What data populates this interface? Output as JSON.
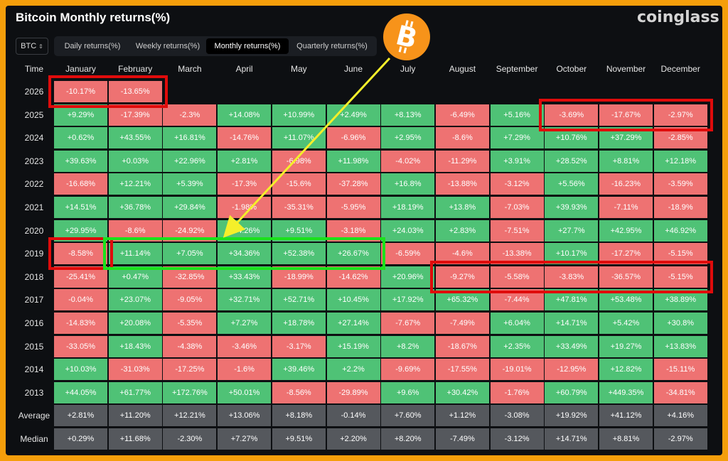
{
  "title": "Bitcoin Monthly returns(%)",
  "brand": "coinglass",
  "coin_select": {
    "value": "BTC"
  },
  "tabs": [
    {
      "label": "Daily returns(%)",
      "active": false
    },
    {
      "label": "Weekly returns(%)",
      "active": false
    },
    {
      "label": "Monthly returns(%)",
      "active": true
    },
    {
      "label": "Quarterly returns(%)",
      "active": false
    }
  ],
  "table": {
    "time_header": "Time",
    "months": [
      "January",
      "February",
      "March",
      "April",
      "May",
      "June",
      "July",
      "August",
      "September",
      "October",
      "November",
      "December"
    ],
    "rows": [
      {
        "year": "2026",
        "values": [
          "-10.17%",
          "-13.65%",
          "",
          "",
          "",
          "",
          "",
          "",
          "",
          "",
          "",
          ""
        ]
      },
      {
        "year": "2025",
        "values": [
          "+9.29%",
          "-17.39%",
          "-2.3%",
          "+14.08%",
          "+10.99%",
          "+2.49%",
          "+8.13%",
          "-6.49%",
          "+5.16%",
          "-3.69%",
          "-17.67%",
          "-2.97%"
        ]
      },
      {
        "year": "2024",
        "values": [
          "+0.62%",
          "+43.55%",
          "+16.81%",
          "-14.76%",
          "+11.07%",
          "-6.96%",
          "+2.95%",
          "-8.6%",
          "+7.29%",
          "+10.76%",
          "+37.29%",
          "-2.85%"
        ]
      },
      {
        "year": "2023",
        "values": [
          "+39.63%",
          "+0.03%",
          "+22.96%",
          "+2.81%",
          "-6.98%",
          "+11.98%",
          "-4.02%",
          "-11.29%",
          "+3.91%",
          "+28.52%",
          "+8.81%",
          "+12.18%"
        ]
      },
      {
        "year": "2022",
        "values": [
          "-16.68%",
          "+12.21%",
          "+5.39%",
          "-17.3%",
          "-15.6%",
          "-37.28%",
          "+16.8%",
          "-13.88%",
          "-3.12%",
          "+5.56%",
          "-16.23%",
          "-3.59%"
        ]
      },
      {
        "year": "2021",
        "values": [
          "+14.51%",
          "+36.78%",
          "+29.84%",
          "-1.98%",
          "-35.31%",
          "-5.95%",
          "+18.19%",
          "+13.8%",
          "-7.03%",
          "+39.93%",
          "-7.11%",
          "-18.9%"
        ]
      },
      {
        "year": "2020",
        "values": [
          "+29.95%",
          "-8.6%",
          "-24.92%",
          "+34.26%",
          "+9.51%",
          "-3.18%",
          "+24.03%",
          "+2.83%",
          "-7.51%",
          "+27.7%",
          "+42.95%",
          "+46.92%"
        ]
      },
      {
        "year": "2019",
        "values": [
          "-8.58%",
          "+11.14%",
          "+7.05%",
          "+34.36%",
          "+52.38%",
          "+26.67%",
          "-6.59%",
          "-4.6%",
          "-13.38%",
          "+10.17%",
          "-17.27%",
          "-5.15%"
        ]
      },
      {
        "year": "2018",
        "values": [
          "-25.41%",
          "+0.47%",
          "-32.85%",
          "+33.43%",
          "-18.99%",
          "-14.62%",
          "+20.96%",
          "-9.27%",
          "-5.58%",
          "-3.83%",
          "-36.57%",
          "-5.15%"
        ]
      },
      {
        "year": "2017",
        "values": [
          "-0.04%",
          "+23.07%",
          "-9.05%",
          "+32.71%",
          "+52.71%",
          "+10.45%",
          "+17.92%",
          "+65.32%",
          "-7.44%",
          "+47.81%",
          "+53.48%",
          "+38.89%"
        ]
      },
      {
        "year": "2016",
        "values": [
          "-14.83%",
          "+20.08%",
          "-5.35%",
          "+7.27%",
          "+18.78%",
          "+27.14%",
          "-7.67%",
          "-7.49%",
          "+6.04%",
          "+14.71%",
          "+5.42%",
          "+30.8%"
        ]
      },
      {
        "year": "2015",
        "values": [
          "-33.05%",
          "+18.43%",
          "-4.38%",
          "-3.46%",
          "-3.17%",
          "+15.19%",
          "+8.2%",
          "-18.67%",
          "+2.35%",
          "+33.49%",
          "+19.27%",
          "+13.83%"
        ]
      },
      {
        "year": "2014",
        "values": [
          "+10.03%",
          "-31.03%",
          "-17.25%",
          "-1.6%",
          "+39.46%",
          "+2.2%",
          "-9.69%",
          "-17.55%",
          "-19.01%",
          "-12.95%",
          "+12.82%",
          "-15.11%"
        ]
      },
      {
        "year": "2013",
        "values": [
          "+44.05%",
          "+61.77%",
          "+172.76%",
          "+50.01%",
          "-8.56%",
          "-29.89%",
          "+9.6%",
          "+30.42%",
          "-1.76%",
          "+60.79%",
          "+449.35%",
          "-34.81%"
        ]
      }
    ],
    "summary": [
      {
        "label": "Average",
        "values": [
          "+2.81%",
          "+11.20%",
          "+12.21%",
          "+13.06%",
          "+8.18%",
          "-0.14%",
          "+7.60%",
          "+1.12%",
          "-3.08%",
          "+19.92%",
          "+41.12%",
          "+4.16%"
        ]
      },
      {
        "label": "Median",
        "values": [
          "+0.29%",
          "+11.68%",
          "-2.30%",
          "+7.27%",
          "+9.51%",
          "+2.20%",
          "+8.20%",
          "-7.49%",
          "-3.12%",
          "+14.71%",
          "+8.81%",
          "-2.97%"
        ]
      }
    ]
  },
  "colors": {
    "positive": "#4fc276",
    "negative": "#ee7272",
    "summary": "#55585d",
    "frame": "#f59e0b",
    "highlight_red": "#e00b0b",
    "highlight_green": "#1be21b",
    "arrow": "#f5ef2a"
  },
  "annotations": {
    "icon": "bitcoin-logo-icon",
    "highlights": [
      {
        "color": "red",
        "rows": [
          "2026"
        ],
        "months": [
          "January",
          "February"
        ]
      },
      {
        "color": "red",
        "rows": [
          "2025"
        ],
        "months": [
          "October",
          "November",
          "December"
        ]
      },
      {
        "color": "red",
        "rows": [
          "2019"
        ],
        "months": [
          "January"
        ]
      },
      {
        "color": "green",
        "rows": [
          "2019"
        ],
        "months": [
          "February",
          "March",
          "April",
          "May",
          "June"
        ]
      },
      {
        "color": "red",
        "rows": [
          "2018"
        ],
        "months": [
          "August",
          "September",
          "October",
          "November",
          "December"
        ]
      }
    ]
  }
}
